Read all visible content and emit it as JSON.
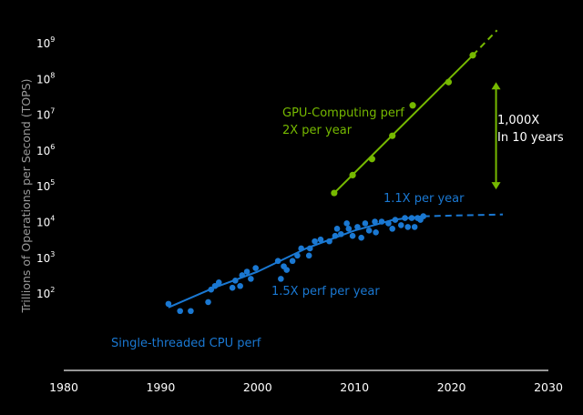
{
  "chart_data": {
    "type": "scatter",
    "title": "",
    "xlabel": "",
    "ylabel": "Trillions of Operations per Second (TOPS)",
    "xlim": [
      1980,
      2030
    ],
    "ylim_log10": [
      -0.6,
      9.4
    ],
    "yscale": "log",
    "grid": false,
    "x_ticks": [
      1980,
      1990,
      2000,
      2010,
      2020,
      2030
    ],
    "x_tick_labels": [
      "1980",
      "1990",
      "2000",
      "2010",
      "2020",
      "2030"
    ],
    "y_ticks_exp": [
      2,
      3,
      4,
      5,
      6,
      7,
      8,
      9
    ],
    "y_tick_base": "10",
    "colors": {
      "gpu": "#76b900",
      "cpu": "#1a78d2",
      "axis": "#c8c8c8",
      "text": "#ffffff",
      "ylabel": "#9a9a9a"
    },
    "series": [
      {
        "name": "GPU-Computing perf",
        "color": "#76b900",
        "points": [
          {
            "x": 2007.9,
            "y": 4.8
          },
          {
            "x": 2009.8,
            "y": 5.3
          },
          {
            "x": 2011.8,
            "y": 5.75
          },
          {
            "x": 2013.9,
            "y": 6.4
          },
          {
            "x": 2016.0,
            "y": 7.25
          },
          {
            "x": 2019.7,
            "y": 7.9
          },
          {
            "x": 2022.2,
            "y": 8.65
          }
        ],
        "trend_solid": [
          [
            2007.9,
            4.8
          ],
          [
            2022.2,
            8.65
          ]
        ],
        "trend_dashed": [
          [
            2022.2,
            8.65
          ],
          [
            2024.7,
            9.35
          ]
        ]
      },
      {
        "name": "Single-threaded CPU perf",
        "color": "#1a78d2",
        "points": [
          {
            "x": 1990.8,
            "y": 1.7
          },
          {
            "x": 1992.0,
            "y": 1.5
          },
          {
            "x": 1993.1,
            "y": 1.5
          },
          {
            "x": 1994.9,
            "y": 1.75
          },
          {
            "x": 1995.2,
            "y": 2.1
          },
          {
            "x": 1995.6,
            "y": 2.2
          },
          {
            "x": 1996.0,
            "y": 2.3
          },
          {
            "x": 1997.4,
            "y": 2.15
          },
          {
            "x": 1997.7,
            "y": 2.35
          },
          {
            "x": 1998.2,
            "y": 2.2
          },
          {
            "x": 1998.4,
            "y": 2.5
          },
          {
            "x": 1998.9,
            "y": 2.6
          },
          {
            "x": 1999.3,
            "y": 2.4
          },
          {
            "x": 1999.8,
            "y": 2.7
          },
          {
            "x": 2002.1,
            "y": 2.9
          },
          {
            "x": 2002.4,
            "y": 2.4
          },
          {
            "x": 2002.7,
            "y": 2.75
          },
          {
            "x": 2003.0,
            "y": 2.65
          },
          {
            "x": 2003.6,
            "y": 2.9
          },
          {
            "x": 2004.1,
            "y": 3.05
          },
          {
            "x": 2004.5,
            "y": 3.25
          },
          {
            "x": 2005.3,
            "y": 3.05
          },
          {
            "x": 2005.4,
            "y": 3.25
          },
          {
            "x": 2005.9,
            "y": 3.45
          },
          {
            "x": 2006.5,
            "y": 3.5
          },
          {
            "x": 2007.4,
            "y": 3.45
          },
          {
            "x": 2008.0,
            "y": 3.6
          },
          {
            "x": 2008.2,
            "y": 3.8
          },
          {
            "x": 2008.6,
            "y": 3.65
          },
          {
            "x": 2009.2,
            "y": 3.95
          },
          {
            "x": 2009.4,
            "y": 3.8
          },
          {
            "x": 2009.8,
            "y": 3.6
          },
          {
            "x": 2010.3,
            "y": 3.85
          },
          {
            "x": 2010.7,
            "y": 3.55
          },
          {
            "x": 2011.1,
            "y": 3.95
          },
          {
            "x": 2011.5,
            "y": 3.75
          },
          {
            "x": 2012.1,
            "y": 4.0
          },
          {
            "x": 2012.2,
            "y": 3.7
          },
          {
            "x": 2012.8,
            "y": 4.0
          },
          {
            "x": 2013.5,
            "y": 3.95
          },
          {
            "x": 2013.9,
            "y": 3.8
          },
          {
            "x": 2014.2,
            "y": 4.05
          },
          {
            "x": 2014.8,
            "y": 3.9
          },
          {
            "x": 2015.2,
            "y": 4.1
          },
          {
            "x": 2015.5,
            "y": 3.85
          },
          {
            "x": 2015.9,
            "y": 4.1
          },
          {
            "x": 2016.2,
            "y": 3.85
          },
          {
            "x": 2016.5,
            "y": 4.1
          },
          {
            "x": 2016.8,
            "y": 4.05
          },
          {
            "x": 2017.1,
            "y": 4.15
          }
        ],
        "trend_solid": [
          [
            1990.8,
            1.6
          ],
          [
            1995.5,
            2.15
          ],
          [
            2000,
            2.6
          ],
          [
            2005,
            3.25
          ],
          [
            2010,
            3.75
          ],
          [
            2014,
            4.05
          ],
          [
            2017.1,
            4.15
          ]
        ],
        "trend_dashed": [
          [
            2017.1,
            4.15
          ],
          [
            2025.3,
            4.2
          ]
        ]
      }
    ],
    "annotations": [
      {
        "text": "GPU-Computing perf",
        "color": "#76b900"
      },
      {
        "text": "2X per year",
        "color": "#76b900"
      },
      {
        "text": "1,000X",
        "color": "#ffffff"
      },
      {
        "text": "In 10 years",
        "color": "#ffffff"
      },
      {
        "text": "1.1X per year",
        "color": "#1a78d2"
      },
      {
        "text": "1.5X perf per year",
        "color": "#1a78d2"
      },
      {
        "text": "Single-threaded CPU perf",
        "color": "#1a78d2"
      }
    ],
    "range_arrow": {
      "x": 2024.6,
      "from_exp": 4.9,
      "to_exp": 7.9,
      "color": "#76b900"
    }
  }
}
